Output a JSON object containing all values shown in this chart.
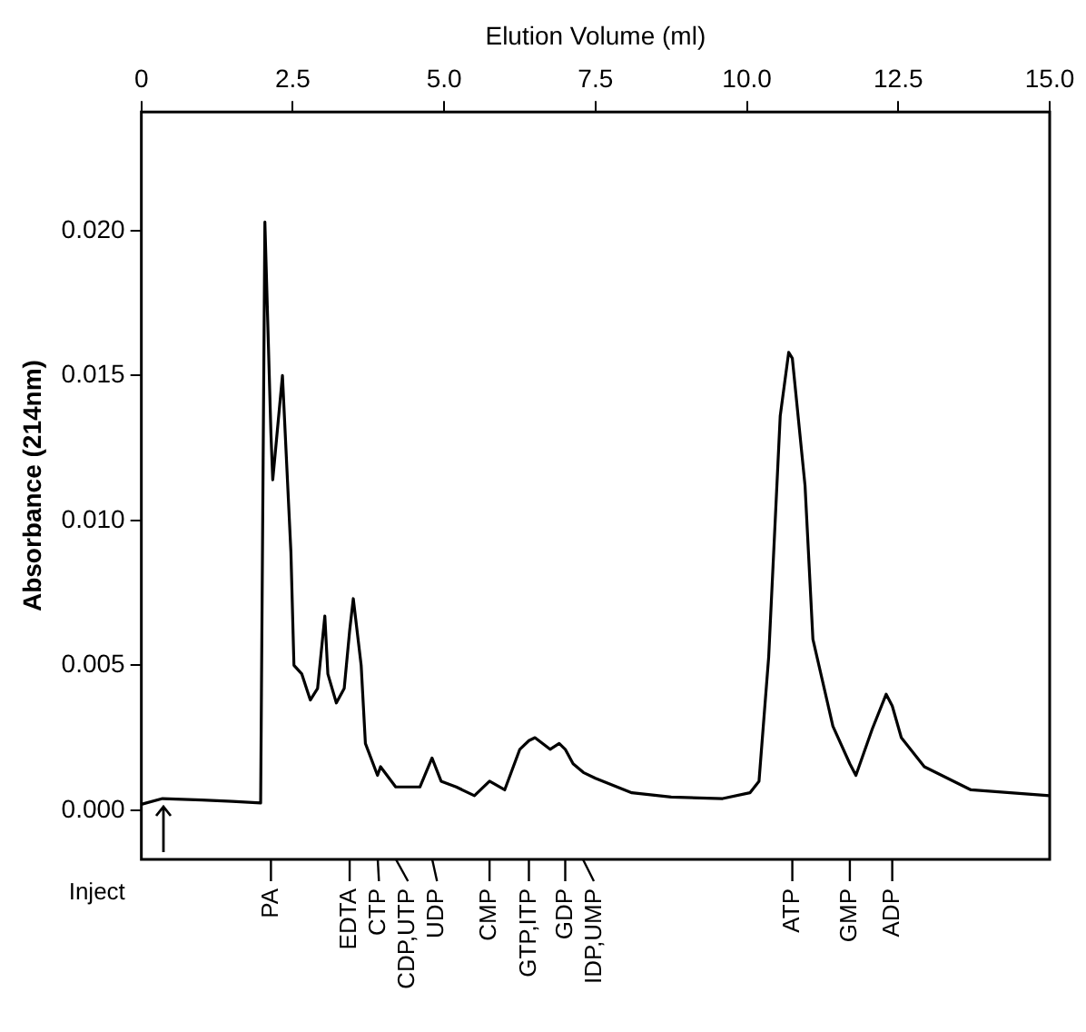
{
  "chart_data": {
    "type": "line",
    "xlabel": "Elution Volume (ml)",
    "ylabel": "Absorbance (214nm)",
    "xlim": [
      0,
      15
    ],
    "xticks": [
      0,
      2.5,
      {
        "value": 5,
        "label": "5.0"
      },
      7.5,
      {
        "value": 10,
        "label": "10.0"
      },
      12.5,
      {
        "value": 15,
        "label": "15.0"
      }
    ],
    "ylim": [
      -0.0017,
      0.0241
    ],
    "yticks": [
      {
        "value": 0,
        "label": "0.000"
      },
      {
        "value": 0.005,
        "label": "0.005"
      },
      {
        "value": 0.01,
        "label": "0.010"
      },
      {
        "value": 0.015,
        "label": "0.015"
      },
      {
        "value": 0.02,
        "label": "0.020"
      }
    ],
    "grid": false,
    "legend": false,
    "series": [
      {
        "color": "#000000",
        "x": [
          0,
          0.35,
          1.0,
          1.5,
          1.97,
          2.04,
          2.14,
          2.17,
          2.33,
          2.47,
          2.52,
          2.65,
          2.79,
          2.91,
          3.03,
          3.08,
          3.22,
          3.35,
          3.44,
          3.5,
          3.63,
          3.7,
          3.9,
          3.95,
          4.2,
          4.6,
          4.8,
          4.95,
          5.2,
          5.5,
          5.75,
          6.0,
          6.25,
          6.4,
          6.5,
          6.75,
          6.9,
          7.0,
          7.13,
          7.3,
          7.5,
          8.1,
          8.75,
          9.6,
          10.05,
          10.2,
          10.36,
          10.55,
          10.69,
          10.75,
          10.96,
          11.09,
          11.42,
          11.7,
          11.8,
          12.07,
          12.3,
          12.4,
          12.55,
          12.93,
          13.7,
          15.0
        ],
        "values": [
          0.0002,
          0.0004,
          0.00035,
          0.0003,
          0.00025,
          0.0203,
          0.013,
          0.0114,
          0.015,
          0.0089,
          0.005,
          0.0047,
          0.0038,
          0.0042,
          0.0067,
          0.0047,
          0.0037,
          0.0042,
          0.0062,
          0.0073,
          0.005,
          0.0023,
          0.0012,
          0.0015,
          0.0008,
          0.0008,
          0.0018,
          0.001,
          0.0008,
          0.0005,
          0.001,
          0.0007,
          0.0021,
          0.0024,
          0.0025,
          0.0021,
          0.0023,
          0.0021,
          0.0016,
          0.0013,
          0.0011,
          0.0006,
          0.00045,
          0.0004,
          0.0006,
          0.001,
          0.0053,
          0.0136,
          0.0158,
          0.0156,
          0.0112,
          0.0059,
          0.0029,
          0.0016,
          0.0012,
          0.0028,
          0.004,
          0.0036,
          0.0025,
          0.0015,
          0.0007,
          0.0005
        ]
      }
    ],
    "annotations": [
      "Inject",
      {
        "text": "PA",
        "x": 2.14
      },
      {
        "text": "EDTA",
        "x": 3.44
      },
      {
        "text": "CTP",
        "x": 3.9
      },
      {
        "text": "CDP,UTP",
        "x": 4.2
      },
      {
        "text": "UDP",
        "x": 4.8
      },
      {
        "text": "CMP",
        "x": 5.75
      },
      {
        "text": "GTP,ITP",
        "x": 6.4
      },
      {
        "text": "GDP",
        "x": 7.0
      },
      {
        "text": "IDP,UMP",
        "x": 7.3
      },
      {
        "text": "ATP",
        "x": 10.75
      },
      {
        "text": "GMP",
        "x": 11.7
      },
      {
        "text": "ADP",
        "x": 12.4
      }
    ]
  }
}
